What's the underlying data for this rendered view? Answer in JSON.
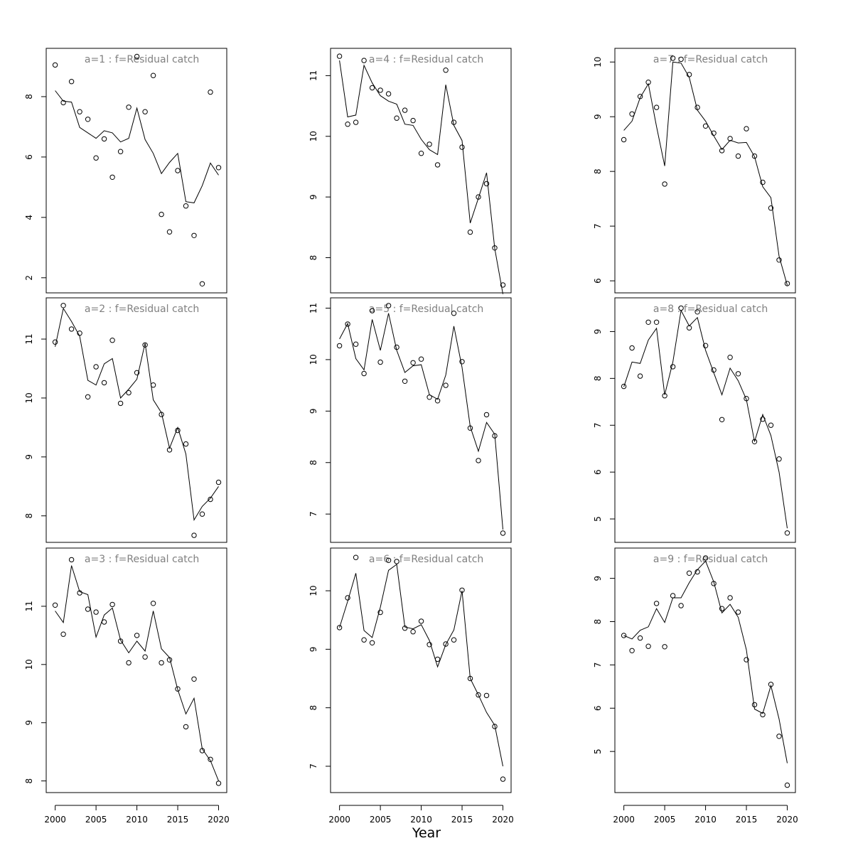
{
  "figure": {
    "xlabel": "Year",
    "x_ticks": [
      2000,
      2005,
      2010,
      2015,
      2020
    ]
  },
  "chart_data": [
    {
      "type": "line",
      "title": "a=1  :  f=Residual catch",
      "xlabel": "",
      "ylabel": "",
      "xlim": [
        1998.9,
        2021.0
      ],
      "ylim": [
        1.5,
        9.6
      ],
      "y_ticks": [
        2,
        4,
        6,
        8
      ],
      "x": [
        2000,
        2001,
        2002,
        2003,
        2004,
        2005,
        2006,
        2007,
        2008,
        2009,
        2010,
        2011,
        2012,
        2013,
        2014,
        2015,
        2016,
        2017,
        2018,
        2019,
        2020
      ],
      "observed": [
        9.05,
        7.8,
        8.5,
        7.5,
        7.25,
        5.97,
        6.6,
        5.33,
        6.18,
        7.65,
        9.33,
        7.5,
        8.7,
        4.1,
        3.52,
        5.55,
        4.38,
        3.4,
        1.8,
        8.15,
        5.65
      ],
      "fitted": [
        8.2,
        7.85,
        7.82,
        6.98,
        6.8,
        6.62,
        6.87,
        6.8,
        6.5,
        6.62,
        7.62,
        6.58,
        6.12,
        5.45,
        5.82,
        6.12,
        4.52,
        4.48,
        5.05,
        5.8,
        5.4
      ]
    },
    {
      "type": "line",
      "title": "a=2  :  f=Residual catch",
      "xlabel": "",
      "ylabel": "",
      "xlim": [
        1998.9,
        2021.0
      ],
      "ylim": [
        7.55,
        11.7
      ],
      "y_ticks": [
        8,
        9,
        10,
        11
      ],
      "x": [
        2000,
        2001,
        2002,
        2003,
        2004,
        2005,
        2006,
        2007,
        2008,
        2009,
        2010,
        2011,
        2012,
        2013,
        2014,
        2015,
        2016,
        2017,
        2018,
        2019,
        2020
      ],
      "observed": [
        10.95,
        11.57,
        11.17,
        11.1,
        10.02,
        10.53,
        10.26,
        10.98,
        9.91,
        10.09,
        10.43,
        10.9,
        10.22,
        9.72,
        9.12,
        9.45,
        9.22,
        7.67,
        8.03,
        8.28,
        8.57
      ],
      "fitted": [
        10.87,
        11.52,
        11.3,
        11.05,
        10.3,
        10.22,
        10.58,
        10.67,
        10.0,
        10.15,
        10.32,
        10.93,
        9.97,
        9.75,
        9.15,
        9.5,
        9.05,
        7.93,
        8.16,
        8.3,
        8.5
      ]
    },
    {
      "type": "line",
      "title": "a=3  :  f=Residual catch",
      "xlabel": "",
      "ylabel": "",
      "xlim": [
        1998.9,
        2021.0
      ],
      "ylim": [
        7.8,
        12.0
      ],
      "y_ticks": [
        8,
        9,
        10,
        11
      ],
      "x": [
        2000,
        2001,
        2002,
        2003,
        2004,
        2005,
        2006,
        2007,
        2008,
        2009,
        2010,
        2011,
        2012,
        2013,
        2014,
        2015,
        2016,
        2017,
        2018,
        2019,
        2020
      ],
      "observed": [
        11.02,
        10.52,
        11.8,
        11.23,
        10.95,
        10.9,
        10.73,
        11.03,
        10.4,
        10.03,
        10.5,
        10.13,
        11.05,
        10.03,
        10.08,
        9.58,
        8.93,
        9.75,
        8.52,
        8.37,
        7.96
      ],
      "fitted": [
        10.92,
        10.72,
        11.7,
        11.25,
        11.2,
        10.47,
        10.85,
        10.97,
        10.42,
        10.2,
        10.4,
        10.23,
        10.92,
        10.27,
        10.12,
        9.57,
        9.15,
        9.42,
        8.55,
        8.35,
        8.0
      ]
    },
    {
      "type": "line",
      "title": "a=4  :  f=Residual catch",
      "xlabel": "",
      "ylabel": "",
      "xlim": [
        1998.9,
        2021.0
      ],
      "ylim": [
        7.42,
        11.45
      ],
      "y_ticks": [
        8,
        9,
        10,
        11
      ],
      "x": [
        2000,
        2001,
        2002,
        2003,
        2004,
        2005,
        2006,
        2007,
        2008,
        2009,
        2010,
        2011,
        2012,
        2013,
        2014,
        2015,
        2016,
        2017,
        2018,
        2019,
        2020
      ],
      "observed": [
        11.32,
        10.2,
        10.23,
        11.25,
        10.8,
        10.76,
        10.7,
        10.3,
        10.43,
        10.26,
        9.72,
        9.87,
        9.53,
        11.09,
        10.23,
        9.82,
        8.42,
        9.0,
        9.22,
        8.16,
        7.55
      ],
      "fitted": [
        11.25,
        10.32,
        10.35,
        11.17,
        10.88,
        10.67,
        10.58,
        10.53,
        10.2,
        10.18,
        9.95,
        9.78,
        9.7,
        10.85,
        10.18,
        9.93,
        8.57,
        8.98,
        9.4,
        8.15,
        7.4
      ]
    },
    {
      "type": "line",
      "title": "a=5  :  f=Residual catch",
      "xlabel": "",
      "ylabel": "",
      "xlim": [
        1998.9,
        2021.0
      ],
      "ylim": [
        6.45,
        11.2
      ],
      "y_ticks": [
        7,
        8,
        9,
        10,
        11
      ],
      "x": [
        2000,
        2001,
        2002,
        2003,
        2004,
        2005,
        2006,
        2007,
        2008,
        2009,
        2010,
        2011,
        2012,
        2013,
        2014,
        2015,
        2016,
        2017,
        2018,
        2019,
        2020
      ],
      "observed": [
        10.27,
        10.69,
        10.3,
        9.73,
        10.95,
        9.95,
        11.05,
        10.24,
        9.58,
        9.94,
        10.01,
        9.27,
        9.2,
        9.5,
        10.9,
        9.96,
        8.67,
        8.04,
        8.93,
        8.52,
        6.63
      ],
      "fitted": [
        10.4,
        10.7,
        10.02,
        9.8,
        10.78,
        10.18,
        10.9,
        10.18,
        9.75,
        9.88,
        9.9,
        9.32,
        9.23,
        9.7,
        10.65,
        9.85,
        8.7,
        8.22,
        8.78,
        8.55,
        6.7
      ]
    },
    {
      "type": "line",
      "title": "a=6  :  f=Residual catch",
      "xlabel": "",
      "ylabel": "",
      "xlim": [
        1998.9,
        2021.0
      ],
      "ylim": [
        6.55,
        10.73
      ],
      "y_ticks": [
        7,
        8,
        9,
        10
      ],
      "x": [
        2000,
        2001,
        2002,
        2003,
        2004,
        2005,
        2006,
        2007,
        2008,
        2009,
        2010,
        2011,
        2012,
        2013,
        2014,
        2015,
        2016,
        2017,
        2018,
        2019,
        2020
      ],
      "observed": [
        9.37,
        9.88,
        10.57,
        9.16,
        9.11,
        9.63,
        10.52,
        10.5,
        9.36,
        9.3,
        9.48,
        9.08,
        8.83,
        9.09,
        9.16,
        10.01,
        8.5,
        8.22,
        8.21,
        7.68,
        6.78
      ],
      "fitted": [
        9.37,
        9.82,
        10.3,
        9.32,
        9.2,
        9.72,
        10.35,
        10.45,
        9.38,
        9.35,
        9.42,
        9.15,
        8.7,
        9.08,
        9.33,
        10.0,
        8.5,
        8.22,
        7.92,
        7.7,
        7.0
      ]
    },
    {
      "type": "line",
      "title": "a=7  :  f=Residual catch",
      "xlabel": "",
      "ylabel": "",
      "xlim": [
        1998.9,
        2021.0
      ],
      "ylim": [
        5.78,
        10.25
      ],
      "y_ticks": [
        6,
        7,
        8,
        9,
        10
      ],
      "x": [
        2000,
        2001,
        2002,
        2003,
        2004,
        2005,
        2006,
        2007,
        2008,
        2009,
        2010,
        2011,
        2012,
        2013,
        2014,
        2015,
        2016,
        2017,
        2018,
        2019,
        2020
      ],
      "observed": [
        8.58,
        9.05,
        9.37,
        9.63,
        9.17,
        7.77,
        10.07,
        10.05,
        9.77,
        9.17,
        8.83,
        8.7,
        8.38,
        8.6,
        8.28,
        8.78,
        8.28,
        7.8,
        7.33,
        6.38,
        5.95
      ],
      "fitted": [
        8.75,
        8.92,
        9.35,
        9.6,
        8.82,
        8.1,
        10.0,
        9.98,
        9.72,
        9.12,
        8.92,
        8.65,
        8.4,
        8.57,
        8.52,
        8.53,
        8.27,
        7.72,
        7.52,
        6.45,
        5.92
      ]
    },
    {
      "type": "line",
      "title": "a=8  :  f=Residual catch",
      "xlabel": "",
      "ylabel": "",
      "xlim": [
        1998.9,
        2021.0
      ],
      "ylim": [
        4.5,
        9.72
      ],
      "y_ticks": [
        5,
        6,
        7,
        8,
        9
      ],
      "x": [
        2000,
        2001,
        2002,
        2003,
        2004,
        2005,
        2006,
        2007,
        2008,
        2009,
        2010,
        2011,
        2012,
        2013,
        2014,
        2015,
        2016,
        2017,
        2018,
        2019,
        2020
      ],
      "observed": [
        7.83,
        8.65,
        8.05,
        9.2,
        9.2,
        7.63,
        8.25,
        9.5,
        9.08,
        9.42,
        8.7,
        8.18,
        7.12,
        8.45,
        8.1,
        7.57,
        6.65,
        7.13,
        7.0,
        6.28,
        4.7
      ],
      "fitted": [
        7.82,
        8.35,
        8.32,
        8.82,
        9.07,
        7.65,
        8.35,
        9.45,
        9.12,
        9.3,
        8.6,
        8.12,
        7.65,
        8.22,
        7.95,
        7.55,
        6.65,
        7.23,
        6.78,
        6.0,
        4.8
      ]
    },
    {
      "type": "line",
      "title": "a=9  :  f=Residual catch",
      "xlabel": "",
      "ylabel": "",
      "xlim": [
        1998.9,
        2021.0
      ],
      "ylim": [
        4.05,
        9.7
      ],
      "y_ticks": [
        5,
        6,
        7,
        8,
        9
      ],
      "x": [
        2000,
        2001,
        2002,
        2003,
        2004,
        2005,
        2006,
        2007,
        2008,
        2009,
        2010,
        2011,
        2012,
        2013,
        2014,
        2015,
        2016,
        2017,
        2018,
        2019,
        2020
      ],
      "observed": [
        7.68,
        7.33,
        7.62,
        7.43,
        8.42,
        7.42,
        8.6,
        8.37,
        9.12,
        9.15,
        9.47,
        8.88,
        8.3,
        8.55,
        8.22,
        7.12,
        6.08,
        5.85,
        6.55,
        5.35,
        4.22
      ],
      "fitted": [
        7.68,
        7.6,
        7.8,
        7.88,
        8.3,
        7.98,
        8.55,
        8.55,
        8.9,
        9.2,
        9.4,
        8.92,
        8.2,
        8.4,
        8.1,
        7.35,
        5.98,
        5.88,
        6.52,
        5.75,
        4.73
      ]
    }
  ]
}
